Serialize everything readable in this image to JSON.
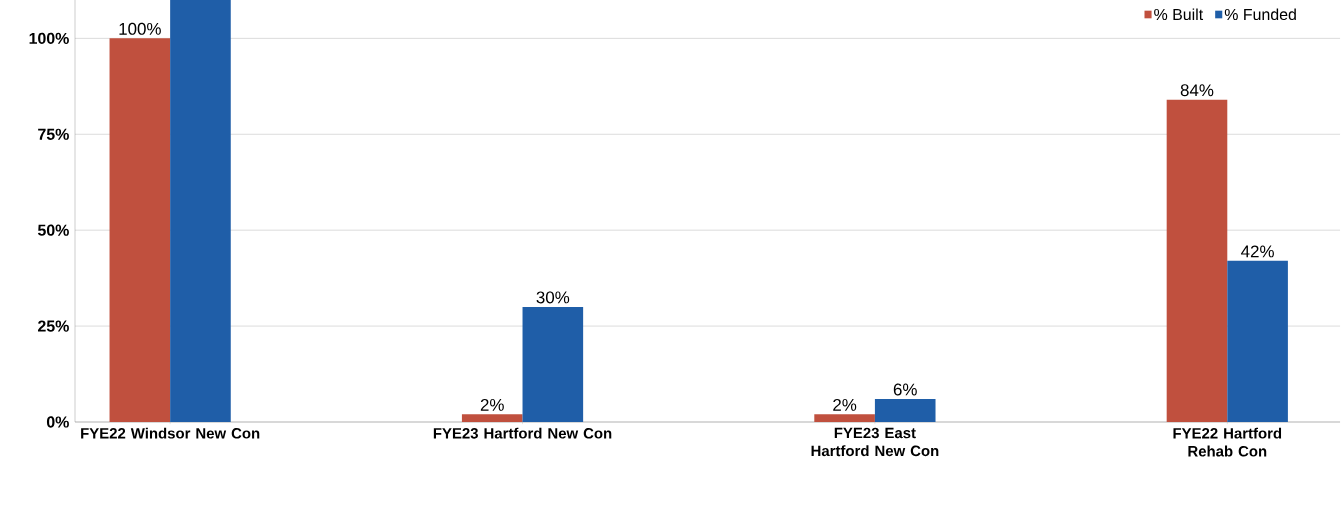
{
  "chart_data": {
    "type": "bar",
    "categories": [
      "FYE22 Windsor New Con",
      "FYE23 Hartford New Con",
      "FYE23 East Hartford New Con",
      "FYE22 Hartford Rehab Con"
    ],
    "series": [
      {
        "name": "% Built",
        "color": "#c0503e",
        "values": [
          100,
          2,
          2,
          84
        ],
        "value_labels": [
          "100%",
          "2%",
          "2%",
          "84%"
        ]
      },
      {
        "name": "% Funded",
        "color": "#1f5ea8",
        "values": [
          110,
          30,
          6,
          42
        ],
        "value_labels": [
          null,
          "30%",
          "6%",
          "42%"
        ]
      }
    ],
    "ylim": [
      0,
      110
    ],
    "yticks": [
      {
        "value": 0,
        "label": "0%"
      },
      {
        "value": 25,
        "label": "25%"
      },
      {
        "value": 50,
        "label": "50%"
      },
      {
        "value": 75,
        "label": "75%"
      },
      {
        "value": 100,
        "label": "100%"
      }
    ],
    "grid": "y",
    "legend": "top right"
  }
}
